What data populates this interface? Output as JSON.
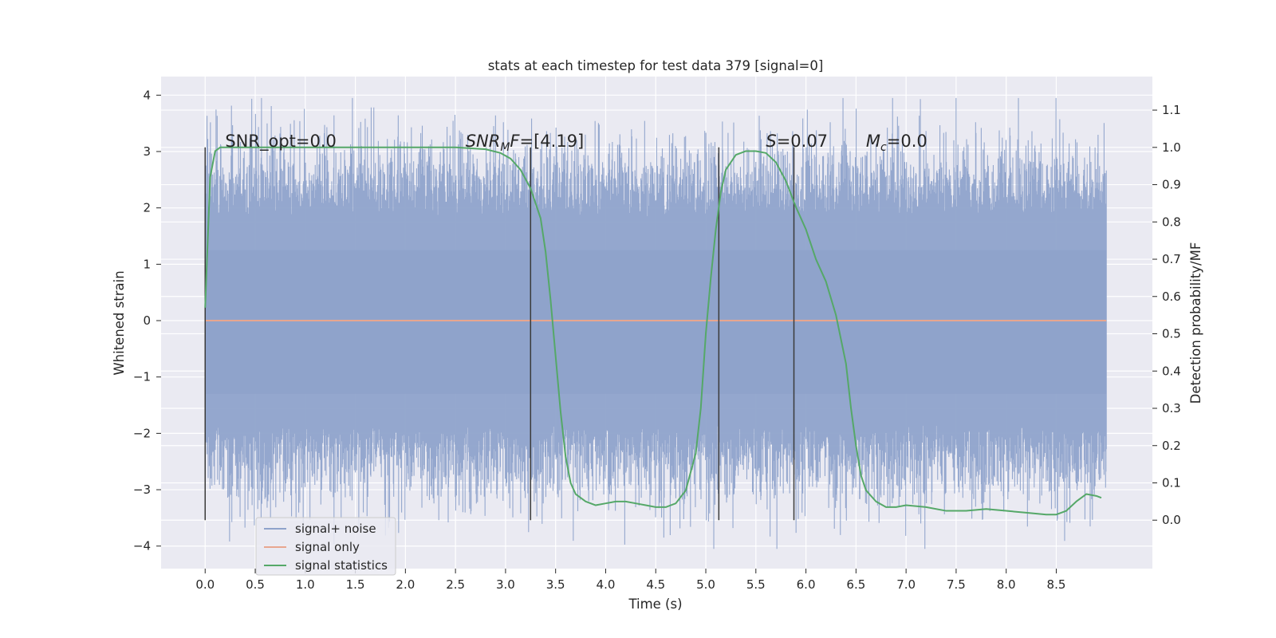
{
  "chart_data": {
    "type": "line",
    "title": "stats at each timestep for test data 379 [signal=0]",
    "xlabel": "Time (s)",
    "ylabel_left": "Whitened strain",
    "ylabel_right": "Detection probability/MF",
    "xlim": [
      -0.44,
      9.46
    ],
    "ylim_left": [
      -4.4,
      4.33
    ],
    "ylim_right": [
      -0.13,
      1.19
    ],
    "x_ticks": [
      "0.0",
      "0.5",
      "1.0",
      "1.5",
      "2.0",
      "2.5",
      "3.0",
      "3.5",
      "4.0",
      "4.5",
      "5.0",
      "5.5",
      "6.0",
      "6.5",
      "7.0",
      "7.5",
      "8.0",
      "8.5"
    ],
    "y_ticks_left": [
      "4",
      "3",
      "2",
      "1",
      "0",
      "−1",
      "−2",
      "−3",
      "−4"
    ],
    "y_ticks_right": [
      "1.1",
      "1.0",
      "0.9",
      "0.8",
      "0.7",
      "0.6",
      "0.5",
      "0.4",
      "0.3",
      "0.2",
      "0.1",
      "0.0"
    ],
    "grid": true,
    "legend_position": "lower-left",
    "series": [
      {
        "name": "signal+ noise",
        "color": "#8fa3cb",
        "axis": "left",
        "description": "dense whitened strain noise, range approx -4 to 4",
        "x_range": [
          0.0,
          9.0
        ]
      },
      {
        "name": "signal only",
        "color": "#e8a68f",
        "axis": "left",
        "x": [
          0.0,
          9.0
        ],
        "y": [
          0.0,
          0.0
        ]
      },
      {
        "name": "signal statistics",
        "color": "#55a868",
        "axis": "right",
        "x": [
          0.0,
          0.05,
          0.1,
          0.15,
          0.2,
          0.3,
          0.5,
          1.0,
          2.0,
          2.5,
          2.8,
          2.95,
          3.05,
          3.15,
          3.25,
          3.35,
          3.4,
          3.45,
          3.5,
          3.55,
          3.6,
          3.65,
          3.7,
          3.8,
          3.9,
          4.0,
          4.1,
          4.2,
          4.3,
          4.4,
          4.5,
          4.6,
          4.7,
          4.8,
          4.9,
          4.95,
          5.0,
          5.05,
          5.1,
          5.15,
          5.2,
          5.3,
          5.4,
          5.5,
          5.6,
          5.7,
          5.8,
          5.9,
          6.0,
          6.1,
          6.2,
          6.3,
          6.4,
          6.45,
          6.5,
          6.55,
          6.6,
          6.7,
          6.8,
          6.9,
          7.0,
          7.2,
          7.4,
          7.6,
          7.8,
          8.0,
          8.2,
          8.4,
          8.5,
          8.6,
          8.7,
          8.8,
          8.9,
          8.95
        ],
        "y": [
          0.57,
          0.92,
          0.99,
          1.0,
          1.0,
          1.0,
          1.0,
          1.0,
          1.0,
          1.0,
          0.995,
          0.985,
          0.97,
          0.94,
          0.89,
          0.81,
          0.72,
          0.59,
          0.44,
          0.29,
          0.17,
          0.1,
          0.07,
          0.05,
          0.04,
          0.045,
          0.05,
          0.05,
          0.045,
          0.04,
          0.035,
          0.035,
          0.045,
          0.08,
          0.18,
          0.3,
          0.5,
          0.65,
          0.78,
          0.88,
          0.94,
          0.98,
          0.99,
          0.99,
          0.985,
          0.96,
          0.91,
          0.84,
          0.78,
          0.7,
          0.64,
          0.55,
          0.42,
          0.3,
          0.2,
          0.12,
          0.08,
          0.05,
          0.035,
          0.035,
          0.04,
          0.035,
          0.025,
          0.025,
          0.03,
          0.025,
          0.02,
          0.015,
          0.015,
          0.025,
          0.05,
          0.07,
          0.065,
          0.06
        ]
      }
    ],
    "vertical_markers": [
      0.0,
      3.25,
      5.13,
      5.88
    ],
    "annotations": [
      {
        "parts": [
          {
            "text": "SNR_opt=0.0",
            "style": "normal"
          }
        ],
        "x": 0.2
      },
      {
        "parts": [
          {
            "text": "SNR",
            "style": "italic"
          },
          {
            "text": "M",
            "style": "italic-sub"
          },
          {
            "text": "F",
            "style": "italic"
          },
          {
            "text": "=[4.19]",
            "style": "normal"
          }
        ],
        "x": 2.6
      },
      {
        "parts": [
          {
            "text": "S",
            "style": "italic"
          },
          {
            "text": "=0.07",
            "style": "normal"
          }
        ],
        "x": 5.6
      },
      {
        "parts": [
          {
            "text": "M",
            "style": "italic"
          },
          {
            "text": "c",
            "style": "italic-sub"
          },
          {
            "text": "=0.0",
            "style": "normal"
          }
        ],
        "x": 6.6
      }
    ]
  }
}
